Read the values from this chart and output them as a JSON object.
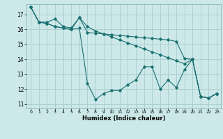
{
  "title": "",
  "xlabel": "Humidex (Indice chaleur)",
  "ylabel": "",
  "background_color": "#cce8e8",
  "grid_color": "#aacccc",
  "line_color": "#1a7070",
  "xlim": [
    -0.5,
    23.5
  ],
  "ylim": [
    10.7,
    17.7
  ],
  "yticks": [
    11,
    12,
    13,
    14,
    15,
    16,
    17
  ],
  "xticks": [
    0,
    1,
    2,
    3,
    4,
    5,
    6,
    7,
    8,
    9,
    10,
    11,
    12,
    13,
    14,
    15,
    16,
    17,
    18,
    19,
    20,
    21,
    22,
    23
  ],
  "series": [
    [
      17.5,
      16.5,
      16.5,
      16.7,
      16.2,
      16.1,
      16.8,
      15.8,
      15.75,
      15.7,
      15.65,
      15.6,
      15.55,
      15.5,
      15.45,
      15.4,
      15.35,
      15.3,
      15.2,
      14.05,
      14.0,
      11.5,
      11.4,
      11.7
    ],
    [
      17.5,
      16.5,
      16.4,
      16.2,
      16.1,
      16.0,
      16.1,
      12.4,
      11.3,
      11.7,
      11.9,
      11.9,
      12.3,
      12.6,
      13.5,
      13.5,
      12.0,
      12.6,
      12.1,
      13.3,
      14.0,
      11.5,
      11.4,
      11.7
    ],
    [
      17.5,
      16.5,
      16.4,
      16.2,
      16.1,
      16.0,
      16.8,
      16.2,
      15.9,
      15.7,
      15.5,
      15.3,
      15.1,
      14.9,
      14.7,
      14.5,
      14.3,
      14.1,
      13.9,
      13.7,
      14.0,
      11.5,
      11.4,
      11.7
    ]
  ]
}
